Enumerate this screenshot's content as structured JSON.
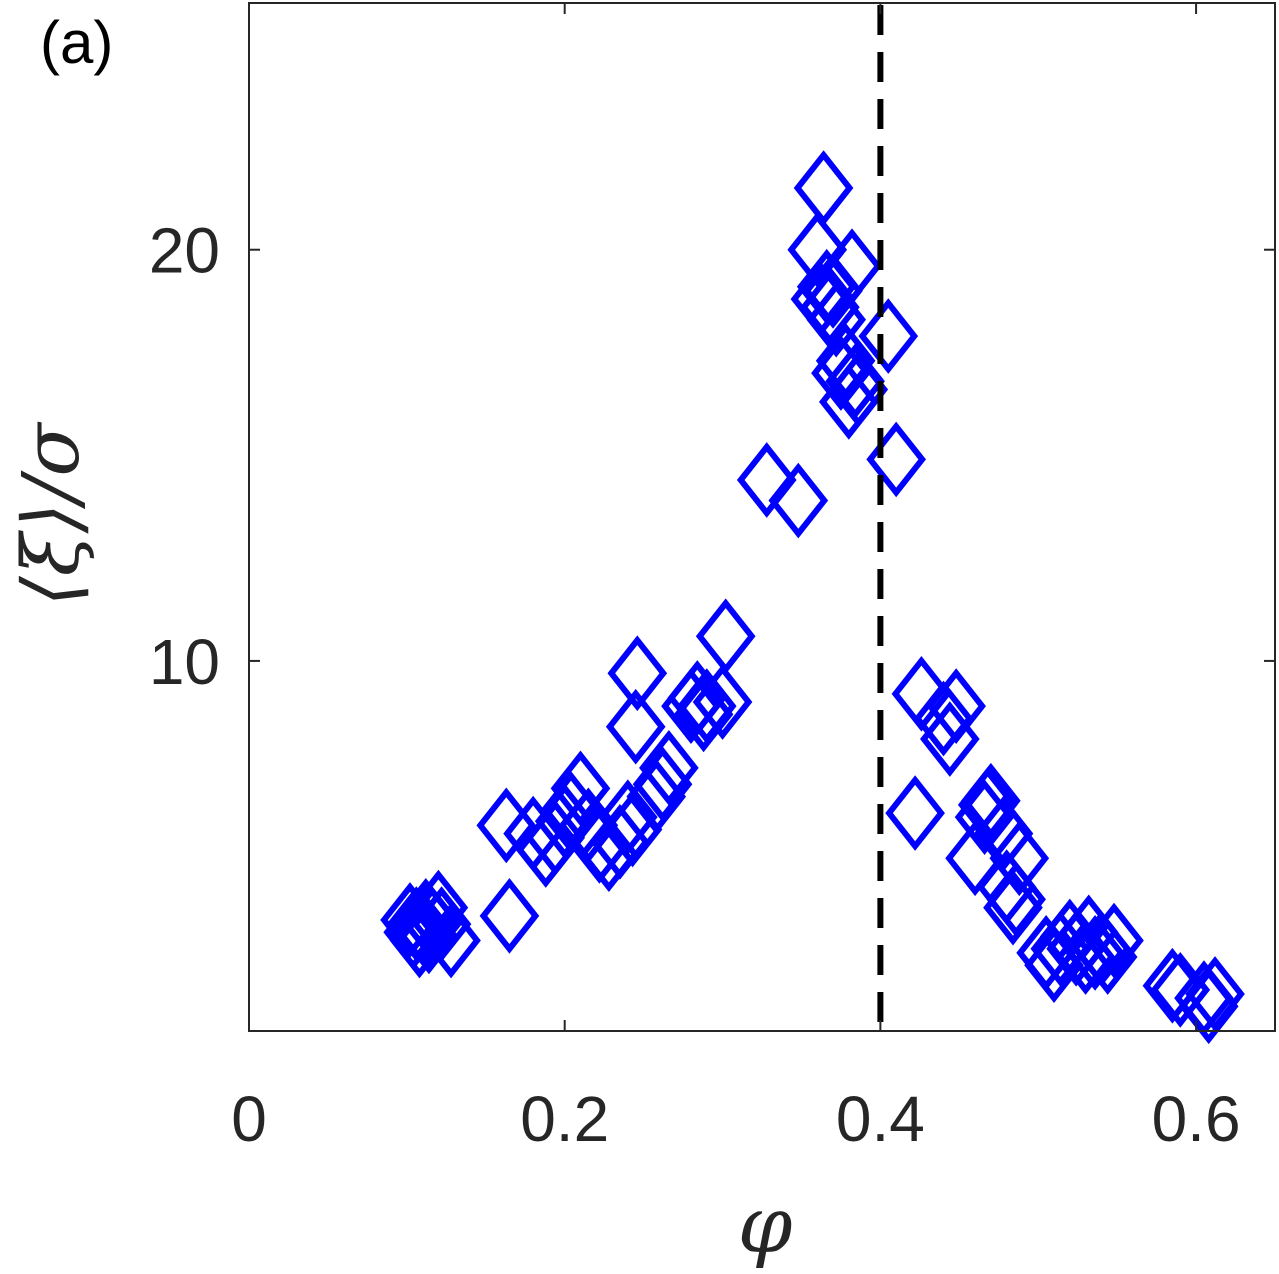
{
  "panel_label": "(a)",
  "colors": {
    "marker": "#0000ff",
    "axis": "#262626",
    "reference_line": "#000000"
  },
  "chart_data": {
    "type": "scatter",
    "title": "",
    "xlabel": "φ",
    "ylabel": "⟨ξ⟩/σ",
    "xlim": [
      0,
      0.65
    ],
    "ylim": [
      1,
      26
    ],
    "xticks": [
      0,
      0.2,
      0.4,
      0.6
    ],
    "xtick_labels": [
      "0",
      "0.2",
      "0.4",
      "0.6"
    ],
    "yticks": [
      10,
      20
    ],
    "ytick_labels": [
      "10",
      "20"
    ],
    "grid": false,
    "marker": "diamond-open",
    "reference_line": {
      "orientation": "vertical",
      "x": 0.4,
      "style": "dashed"
    },
    "series": [
      {
        "points": [
          [
            0.102,
            3.7
          ],
          [
            0.104,
            3.4
          ],
          [
            0.106,
            3.6
          ],
          [
            0.108,
            3.2
          ],
          [
            0.11,
            3.5
          ],
          [
            0.112,
            3.8
          ],
          [
            0.114,
            3.3
          ],
          [
            0.116,
            3.6
          ],
          [
            0.12,
            4.0
          ],
          [
            0.122,
            3.6
          ],
          [
            0.128,
            3.2
          ],
          [
            0.165,
            3.8
          ],
          [
            0.163,
            6.0
          ],
          [
            0.18,
            5.8
          ],
          [
            0.188,
            5.4
          ],
          [
            0.194,
            5.7
          ],
          [
            0.2,
            6.1
          ],
          [
            0.204,
            6.4
          ],
          [
            0.21,
            6.9
          ],
          [
            0.215,
            6.0
          ],
          [
            0.222,
            5.5
          ],
          [
            0.228,
            5.3
          ],
          [
            0.235,
            5.6
          ],
          [
            0.24,
            6.2
          ],
          [
            0.243,
            5.9
          ],
          [
            0.245,
            8.4
          ],
          [
            0.246,
            9.7
          ],
          [
            0.258,
            6.7
          ],
          [
            0.262,
            7.0
          ],
          [
            0.266,
            7.4
          ],
          [
            0.28,
            8.9
          ],
          [
            0.284,
            9.1
          ],
          [
            0.288,
            8.7
          ],
          [
            0.29,
            8.9
          ],
          [
            0.3,
            9.0
          ],
          [
            0.302,
            10.6
          ],
          [
            0.328,
            14.4
          ],
          [
            0.348,
            13.9
          ],
          [
            0.36,
            20.0
          ],
          [
            0.362,
            18.8
          ],
          [
            0.364,
            21.5
          ],
          [
            0.366,
            19.1
          ],
          [
            0.368,
            18.6
          ],
          [
            0.37,
            19.0
          ],
          [
            0.372,
            18.3
          ],
          [
            0.375,
            17.0
          ],
          [
            0.378,
            17.3
          ],
          [
            0.38,
            16.3
          ],
          [
            0.382,
            19.6
          ],
          [
            0.384,
            16.8
          ],
          [
            0.386,
            16.6
          ],
          [
            0.405,
            17.9
          ],
          [
            0.41,
            14.9
          ],
          [
            0.422,
            6.3
          ],
          [
            0.426,
            9.2
          ],
          [
            0.44,
            8.6
          ],
          [
            0.444,
            8.1
          ],
          [
            0.448,
            8.9
          ],
          [
            0.46,
            5.2
          ],
          [
            0.466,
            6.2
          ],
          [
            0.468,
            6.5
          ],
          [
            0.47,
            6.6
          ],
          [
            0.478,
            5.8
          ],
          [
            0.48,
            4.5
          ],
          [
            0.484,
            4.0
          ],
          [
            0.486,
            4.2
          ],
          [
            0.488,
            5.2
          ],
          [
            0.505,
            2.9
          ],
          [
            0.51,
            2.6
          ],
          [
            0.514,
            3.0
          ],
          [
            0.52,
            3.3
          ],
          [
            0.524,
            3.0
          ],
          [
            0.53,
            2.8
          ],
          [
            0.532,
            3.4
          ],
          [
            0.536,
            2.9
          ],
          [
            0.54,
            3.0
          ],
          [
            0.544,
            2.8
          ],
          [
            0.548,
            3.2
          ],
          [
            0.585,
            2.1
          ],
          [
            0.59,
            2.0
          ],
          [
            0.605,
            1.8
          ],
          [
            0.608,
            1.6
          ],
          [
            0.612,
            1.9
          ]
        ]
      }
    ]
  }
}
